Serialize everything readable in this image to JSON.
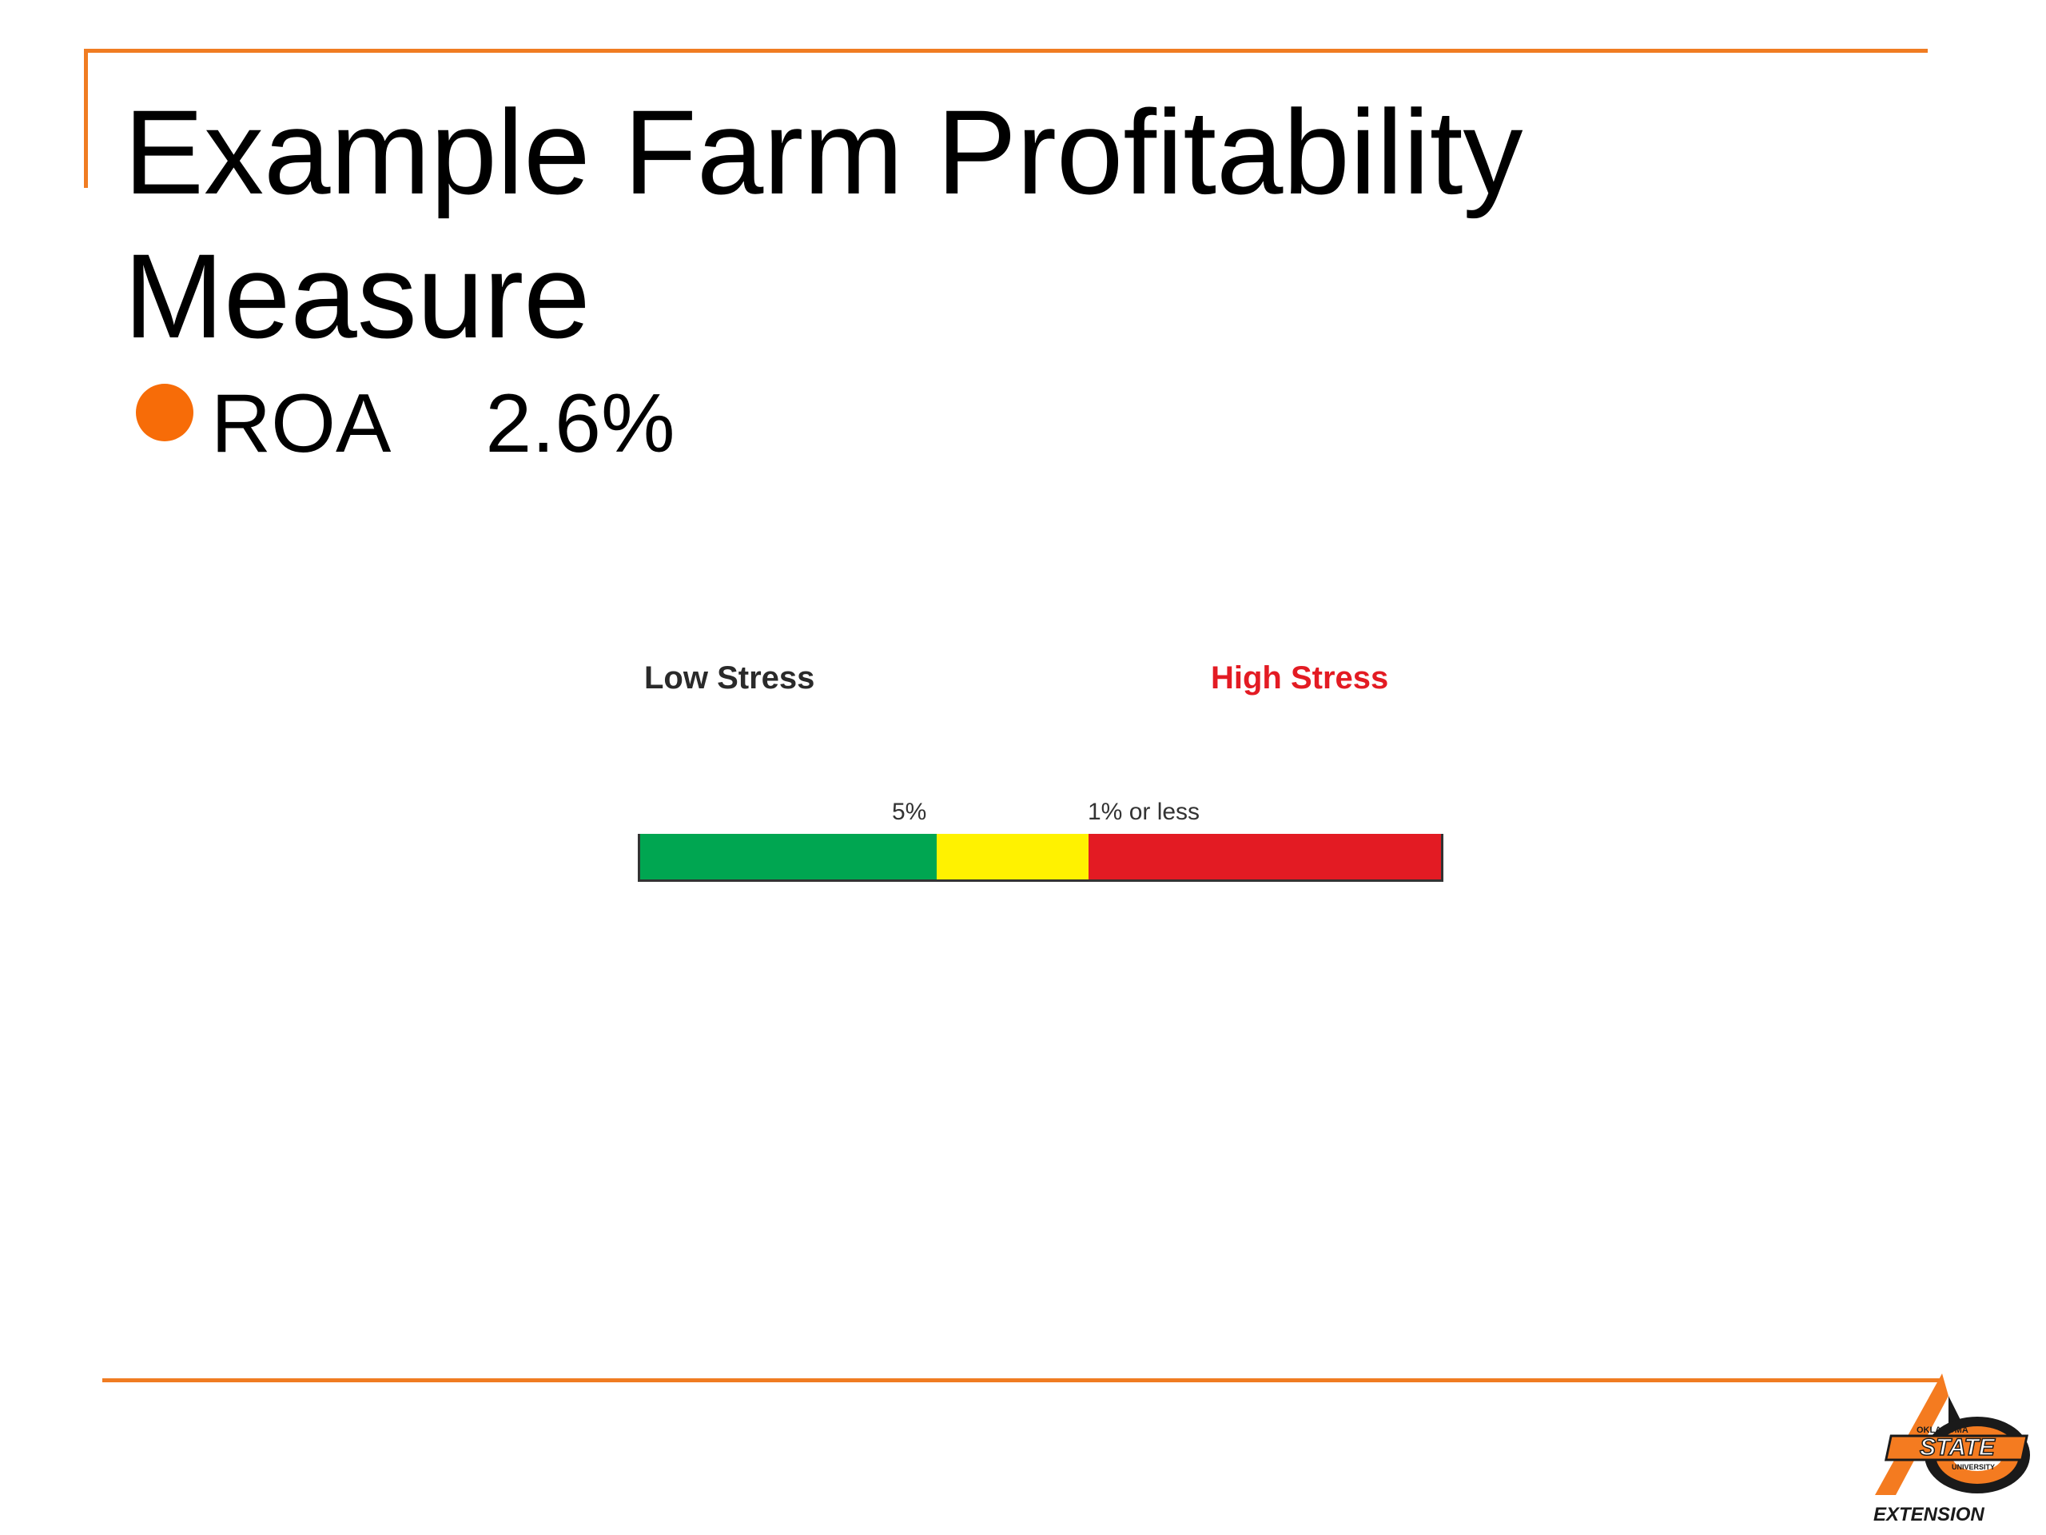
{
  "slide": {
    "title": "Example Farm Profitability Measure",
    "bullet": {
      "label": "ROA",
      "value": "2.6%"
    }
  },
  "stress_scale": {
    "low_label": "Low Stress",
    "high_label": "High Stress",
    "tick_5": "5%",
    "tick_1": "1% or less",
    "segments": [
      {
        "band": "low",
        "fraction": 0.37,
        "color": "#00a651"
      },
      {
        "band": "moderate",
        "fraction": 0.19,
        "color": "#fff200"
      },
      {
        "band": "high",
        "fraction": 0.44,
        "color": "#e31b23"
      }
    ]
  },
  "logo": {
    "text_top": "OKLAHOMA",
    "text_main": "STATE",
    "text_sub": "UNIVERSITY",
    "text_bottom": "EXTENSION"
  },
  "colors": {
    "accent": "#f07c22",
    "bullet": "#f76c08",
    "high_stress_text": "#e31b23"
  }
}
